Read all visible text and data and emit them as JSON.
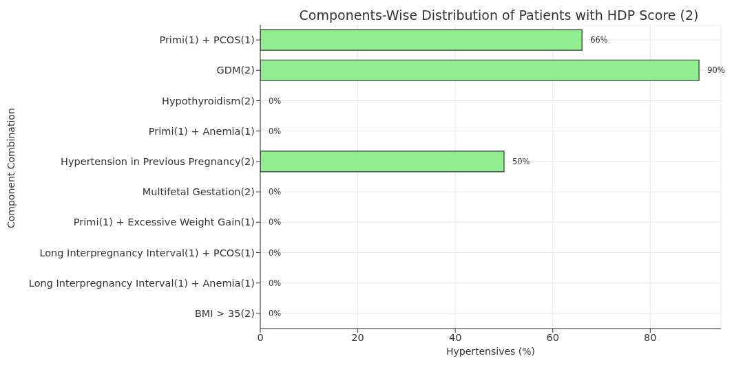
{
  "chart_data": {
    "type": "bar",
    "orientation": "horizontal",
    "title": "Components-Wise Distribution of Patients with HDP Score (2)",
    "xlabel": "Hypertensives (%)",
    "ylabel": "Component Combination",
    "categories": [
      "Primi(1) + PCOS(1)",
      "GDM(2)",
      "Hypothyroidism(2)",
      "Primi(1) + Anemia(1)",
      "Hypertension in Previous Pregnancy(2)",
      "Multifetal Gestation(2)",
      "Primi(1) + Excessive Weight Gain(1)",
      "Long Interpregnancy Interval(1) + PCOS(1)",
      "Long Interpregnancy Interval(1) + Anemia(1)",
      "BMI > 35(2)"
    ],
    "values": [
      66,
      90,
      0,
      0,
      50,
      0,
      0,
      0,
      0,
      0
    ],
    "value_labels": [
      "66%",
      "90%",
      "0%",
      "0%",
      "50%",
      "0%",
      "0%",
      "0%",
      "0%",
      "0%"
    ],
    "color": "#90ee90",
    "xlim": [
      0,
      94.5
    ],
    "xticks": [
      0,
      20,
      40,
      60,
      80
    ],
    "grid": true
  }
}
